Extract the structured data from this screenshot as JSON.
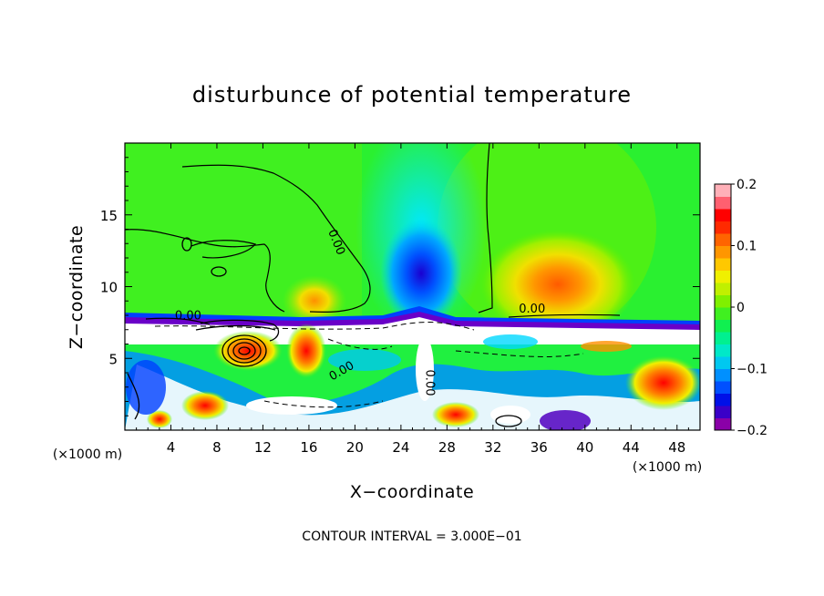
{
  "chart_data": {
    "type": "heatmap",
    "title": "disturbunce of potential temperature",
    "xlabel": "X−coordinate",
    "ylabel": "Z−coordinate",
    "x_unit_left": "(×1000 m)",
    "x_unit_right": "(×1000 m)",
    "xlim": [
      0,
      50
    ],
    "ylim": [
      0,
      20
    ],
    "x_ticks": [
      4,
      8,
      12,
      16,
      20,
      24,
      28,
      32,
      36,
      40,
      44,
      48
    ],
    "y_ticks": [
      5,
      10,
      15
    ],
    "x_tick_labels": [
      "4",
      "8",
      "12",
      "16",
      "20",
      "24",
      "28",
      "32",
      "36",
      "40",
      "44",
      "48"
    ],
    "y_tick_labels": [
      "5",
      "10",
      "15"
    ],
    "colorbar": {
      "range": [
        -0.2,
        0.2
      ],
      "ticks": [
        0.2,
        0.1,
        0,
        -0.1,
        -0.2
      ],
      "tick_labels": [
        "0.2",
        "0.1",
        "0",
        "−0.1",
        "−0.2"
      ],
      "colors": [
        "#8a00a8",
        "#3a00c8",
        "#0010e8",
        "#0050ff",
        "#0090ff",
        "#00c8f0",
        "#00e8c8",
        "#00f090",
        "#10f050",
        "#40f020",
        "#80f000",
        "#c0f000",
        "#f0f000",
        "#ffc800",
        "#ff9600",
        "#ff6400",
        "#ff2a00",
        "#ff0000",
        "#ff6070",
        "#ffb0b8"
      ]
    },
    "contour_labels": [
      {
        "text": "0.00",
        "x": 18.1,
        "y": 13.0,
        "rot": 68
      },
      {
        "text": "0.00",
        "x": 35.4,
        "y": 8.2,
        "rot": 0
      },
      {
        "text": "0.00",
        "x": 5.5,
        "y": 7.7,
        "rot": 0
      },
      {
        "text": "0.00",
        "x": 19.0,
        "y": 3.9,
        "rot": -30
      },
      {
        "text": "0.00",
        "x": 26.2,
        "y": 3.3,
        "rot": 90
      }
    ],
    "annotation": "CONTOUR INTERVAL = 3.000E−01"
  }
}
